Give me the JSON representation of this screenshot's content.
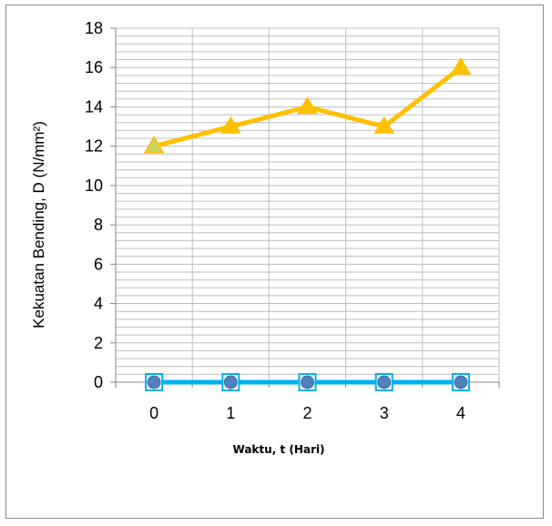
{
  "chart_data": {
    "type": "line",
    "title": "",
    "xlabel": "Waktu, t (Hari)",
    "ylabel": "Kekuatan Bending, D (N/mm²)",
    "x": [
      0,
      1,
      2,
      3,
      4
    ],
    "categories": [
      "0",
      "1",
      "2",
      "3",
      "4"
    ],
    "ylim": [
      0,
      18
    ],
    "yticks": [
      0,
      2,
      4,
      6,
      8,
      10,
      12,
      14,
      16,
      18
    ],
    "grid": true,
    "legend": "none",
    "series": [
      {
        "values": [
          12,
          13,
          14,
          13,
          16
        ],
        "color": "#ffc000",
        "marker": "triangle",
        "marker_fill": "#ffc000",
        "first_marker_fill": "#c9d35f"
      },
      {
        "values": [
          0,
          0,
          0,
          0,
          0
        ],
        "color": "#00b0f0",
        "marker": "square-with-circle",
        "marker_fill": "#4f81bd"
      }
    ]
  }
}
